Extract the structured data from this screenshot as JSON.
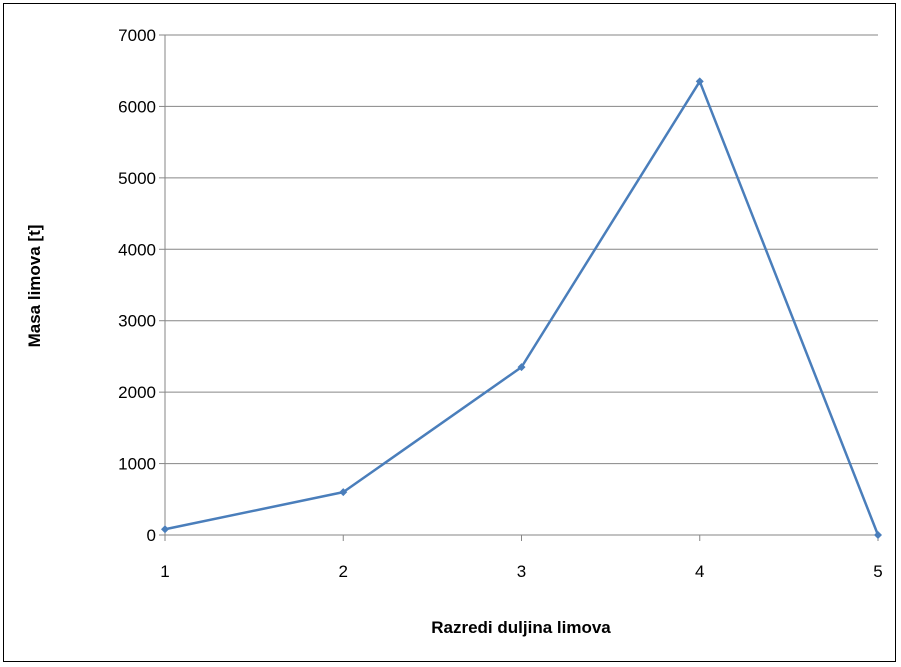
{
  "chart_data": {
    "type": "line",
    "title": "",
    "xlabel": "Razredi duljina limova",
    "ylabel": "Masa limova [t]",
    "x": [
      1,
      2,
      3,
      4,
      5
    ],
    "ylim": [
      0,
      7000
    ],
    "yticks": [
      0,
      1000,
      2000,
      3000,
      4000,
      5000,
      6000,
      7000
    ],
    "grid": true,
    "legend": "none",
    "series": [
      {
        "values": [
          80,
          600,
          2350,
          6350,
          0
        ],
        "color": "#4a7ebb"
      }
    ]
  }
}
